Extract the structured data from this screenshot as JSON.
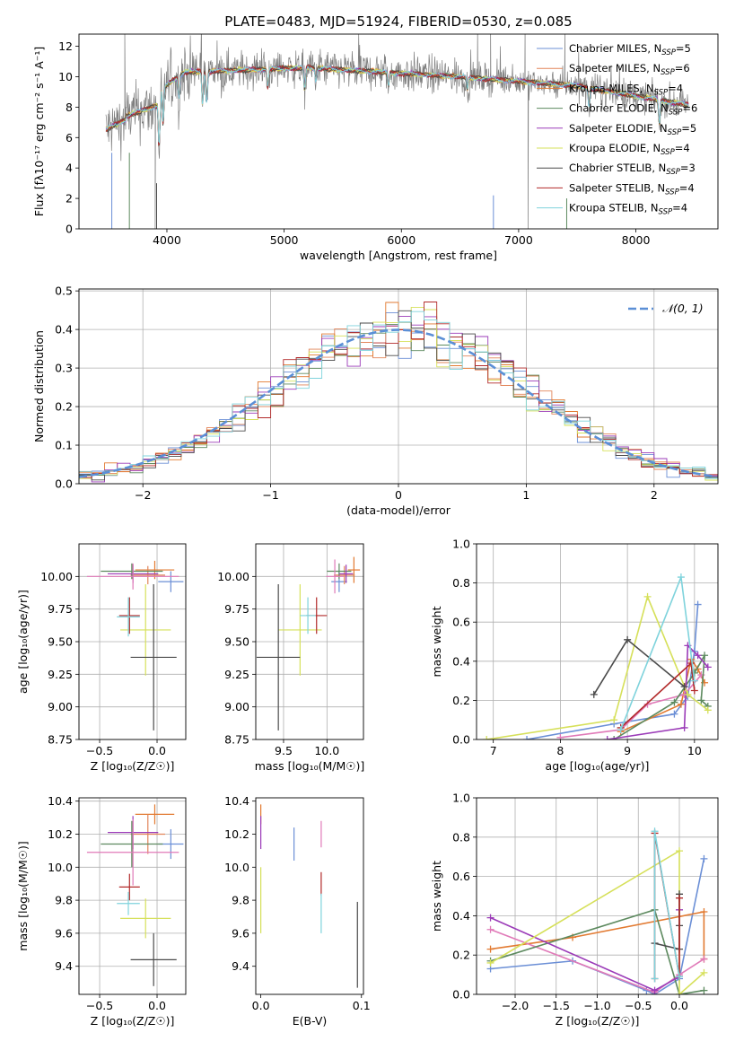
{
  "figure": {
    "title": "PLATE=0483, MJD=51924, FIBERID=0530, z=0.085"
  },
  "chart_data": [
    {
      "id": "spectrum",
      "type": "line",
      "xlabel": "wavelength [Angstrom, rest frame]",
      "ylabel": "Flux [f$_{\\lambda}$10$^{-17}$ erg cm$^{-2}$ s$^{-1}$ A$^{-1}$]",
      "ylabel_text": "Flux [fλ10⁻¹⁷ erg cm⁻² s⁻¹ A⁻¹]",
      "xlim": [
        3250,
        8700
      ],
      "ylim": [
        0,
        12.8
      ],
      "xticks": [
        4000,
        5000,
        6000,
        7000,
        8000
      ],
      "yticks": [
        0,
        2,
        4,
        6,
        8,
        10,
        12
      ],
      "grid": false,
      "legend_position": "top-right",
      "data_color": "#7f7f7f",
      "series": [
        {
          "name": "Chabrier MILES, N$_{SSP}$=5",
          "label": "Chabrier MILES, N",
          "sub": "SSP",
          "suffix": "=5",
          "color": "#6b8fd6"
        },
        {
          "name": "Salpeter MILES, N$_{SSP}$=6",
          "label": "Salpeter MILES, N",
          "sub": "SSP",
          "suffix": "=6",
          "color": "#e2855a"
        },
        {
          "name": "Kroupa MILES, N$_{SSP}$=4",
          "label": "Kroupa MILES, N",
          "sub": "SSP",
          "suffix": "=4",
          "color": "#e27a31"
        },
        {
          "name": "Chabrier ELODIE, N$_{SSP}$=6",
          "label": "Chabrier ELODIE, N",
          "sub": "SSP",
          "suffix": "=6",
          "color": "#5d8a5f"
        },
        {
          "name": "Salpeter ELODIE, N$_{SSP}$=5",
          "label": "Salpeter ELODIE, N",
          "sub": "SSP",
          "suffix": "=5",
          "color": "#9b3bb8"
        },
        {
          "name": "Kroupa ELODIE, N$_{SSP}$=4",
          "label": "Kroupa ELODIE, N",
          "sub": "SSP",
          "suffix": "=4",
          "color": "#d6e05a"
        },
        {
          "name": "Chabrier STELIB, N$_{SSP}$=3",
          "label": "Chabrier STELIB, N",
          "sub": "SSP",
          "suffix": "=3",
          "color": "#4a4a4a"
        },
        {
          "name": "Salpeter STELIB, N$_{SSP}$=4",
          "label": "Salpeter STELIB, N",
          "sub": "SSP",
          "suffix": "=4",
          "color": "#b22a2a"
        },
        {
          "name": "Kroupa STELIB, N$_{SSP}$=4",
          "label": "Kroupa STELIB, N",
          "sub": "SSP",
          "suffix": "=4",
          "color": "#7fd3dc"
        }
      ]
    },
    {
      "id": "residuals",
      "type": "histogram",
      "xlabel": "(data-model)/error",
      "ylabel": "Normed distribution",
      "xlim": [
        -2.5,
        2.5
      ],
      "ylim": [
        0,
        0.505
      ],
      "xticks": [
        -2,
        -1,
        0,
        1,
        2
      ],
      "yticks": [
        0.0,
        0.1,
        0.2,
        0.3,
        0.4,
        0.5
      ],
      "grid": true,
      "legend_position": "top-right",
      "reference_curve": {
        "name": "$\\mathcal{N}(0,1)$",
        "label": "𝒩(0, 1)",
        "mean": 0,
        "sigma": 1,
        "color": "#5b8fd6"
      },
      "bin_width": 0.1
    },
    {
      "id": "age-vs-Z",
      "type": "errorbar",
      "xlabel": "Z [log$_{10}$(Z/Z$_\\odot$)]",
      "xlabel_text": "Z [log₁₀(Z/Z☉)]",
      "ylabel": "age  [log$_{10}$(age/yr)]",
      "ylabel_text": "age  [log₁₀(age/yr)]",
      "xlim": [
        -0.68,
        0.25
      ],
      "ylim": [
        8.75,
        10.25
      ],
      "xticks": [
        -0.5,
        0.0
      ],
      "yticks": [
        8.75,
        9.0,
        9.25,
        9.5,
        9.75,
        10.0
      ],
      "grid": true,
      "points": [
        {
          "x": 0.12,
          "y": 9.96,
          "xerr": 0.11,
          "yerr": 0.08,
          "color": "#6b8fd6"
        },
        {
          "x": -0.02,
          "y": 10.05,
          "xerr": 0.17,
          "yerr": 0.07,
          "color": "#e27a31"
        },
        {
          "x": -0.08,
          "y": 10.01,
          "xerr": 0.15,
          "yerr": 0.07,
          "color": "#e2855a"
        },
        {
          "x": -0.22,
          "y": 10.04,
          "xerr": 0.27,
          "yerr": 0.06,
          "color": "#5d8a5f"
        },
        {
          "x": -0.21,
          "y": 10.02,
          "xerr": 0.22,
          "yerr": 0.07,
          "color": "#9b3bb8"
        },
        {
          "x": -0.1,
          "y": 9.59,
          "xerr": 0.22,
          "yerr": 0.35,
          "color": "#d6e05a"
        },
        {
          "x": -0.03,
          "y": 9.38,
          "xerr": 0.2,
          "yerr": 0.56,
          "color": "#4a4a4a"
        },
        {
          "x": -0.24,
          "y": 9.7,
          "xerr": 0.09,
          "yerr": 0.14,
          "color": "#b22a2a"
        },
        {
          "x": -0.21,
          "y": 10.0,
          "xerr": 0.4,
          "yerr": 0.1,
          "color": "#e07ab8"
        },
        {
          "x": -0.25,
          "y": 9.69,
          "xerr": 0.1,
          "yerr": 0.15,
          "color": "#7fd3dc"
        }
      ]
    },
    {
      "id": "age-vs-mass",
      "type": "errorbar",
      "xlabel": "mass [log$_{10}$(M/M$_\\odot$)]",
      "xlabel_text": "mass [log₁₀(M/M☉)]",
      "ylabel": "",
      "xlim": [
        9.18,
        10.42
      ],
      "ylim": [
        8.75,
        10.25
      ],
      "xticks": [
        9.5,
        10.0
      ],
      "yticks": [
        8.75,
        9.0,
        9.25,
        9.5,
        9.75,
        10.0
      ],
      "grid": true,
      "points": [
        {
          "x": 10.14,
          "y": 9.96,
          "xerr": 0.09,
          "yerr": 0.08,
          "color": "#6b8fd6"
        },
        {
          "x": 10.31,
          "y": 10.05,
          "xerr": 0.07,
          "yerr": 0.1,
          "color": "#e27a31"
        },
        {
          "x": 10.2,
          "y": 10.01,
          "xerr": 0.12,
          "yerr": 0.07,
          "color": "#e2855a"
        },
        {
          "x": 10.14,
          "y": 10.04,
          "xerr": 0.14,
          "yerr": 0.06,
          "color": "#5d8a5f"
        },
        {
          "x": 10.22,
          "y": 10.02,
          "xerr": 0.08,
          "yerr": 0.07,
          "color": "#9b3bb8"
        },
        {
          "x": 9.69,
          "y": 9.59,
          "xerr": 0.25,
          "yerr": 0.35,
          "color": "#d6e05a"
        },
        {
          "x": 9.44,
          "y": 9.38,
          "xerr": 0.25,
          "yerr": 0.56,
          "color": "#4a4a4a"
        },
        {
          "x": 9.88,
          "y": 9.7,
          "xerr": 0.12,
          "yerr": 0.14,
          "color": "#b22a2a"
        },
        {
          "x": 10.09,
          "y": 10.0,
          "xerr": 0.1,
          "yerr": 0.13,
          "color": "#e07ab8"
        },
        {
          "x": 9.78,
          "y": 9.7,
          "xerr": 0.09,
          "yerr": 0.14,
          "color": "#7fd3dc"
        }
      ]
    },
    {
      "id": "weight-vs-age",
      "type": "line",
      "xlabel": "age  [log$_{10}$(age/yr)]",
      "xlabel_text": "age  [log₁₀(age/yr)]",
      "ylabel": "mass weight",
      "xlim": [
        6.75,
        10.35
      ],
      "ylim": [
        0.0,
        1.0
      ],
      "xticks": [
        7,
        8,
        9,
        10
      ],
      "yticks": [
        0.0,
        0.2,
        0.4,
        0.6,
        0.8,
        1.0
      ],
      "grid": true,
      "marker": "+",
      "series": [
        {
          "color": "#6b8fd6",
          "x": [
            7.5,
            8.8,
            9.7,
            9.9,
            10.0,
            10.05
          ],
          "y": [
            0.0,
            0.08,
            0.13,
            0.22,
            0.45,
            0.69
          ]
        },
        {
          "color": "#e27a31",
          "x": [
            8.9,
            9.8,
            9.95,
            10.05,
            10.15
          ],
          "y": [
            0.04,
            0.18,
            0.41,
            0.36,
            0.29
          ]
        },
        {
          "color": "#e07ab8",
          "x": [
            8.0,
            8.9,
            9.3,
            9.85,
            10.1
          ],
          "y": [
            0.01,
            0.05,
            0.18,
            0.23,
            0.33
          ]
        },
        {
          "color": "#5d8a5f",
          "x": [
            8.8,
            9.7,
            10.0,
            10.15,
            10.1,
            10.2
          ],
          "y": [
            0.0,
            0.19,
            0.34,
            0.43,
            0.2,
            0.17
          ]
        },
        {
          "color": "#9b3bb8",
          "x": [
            8.7,
            9.85,
            9.9,
            10.05,
            10.2
          ],
          "y": [
            0.0,
            0.06,
            0.48,
            0.43,
            0.37
          ]
        },
        {
          "color": "#d6e05a",
          "x": [
            6.9,
            8.8,
            9.3,
            9.9,
            10.2
          ],
          "y": [
            0.0,
            0.1,
            0.73,
            0.23,
            0.15
          ]
        },
        {
          "color": "#4a4a4a",
          "x": [
            8.5,
            9.0,
            9.85
          ],
          "y": [
            0.23,
            0.51,
            0.27
          ]
        },
        {
          "color": "#b22a2a",
          "x": [
            8.9,
            9.95,
            10.0
          ],
          "y": [
            0.06,
            0.39,
            0.25
          ]
        },
        {
          "color": "#7fd3dc",
          "x": [
            8.9,
            9.8,
            10.0
          ],
          "y": [
            0.05,
            0.83,
            0.3
          ]
        }
      ]
    },
    {
      "id": "mass-vs-Z",
      "type": "errorbar",
      "xlabel": "Z [log$_{10}$(Z/Z$_\\odot$)]",
      "xlabel_text": "Z [log₁₀(Z/Z☉)]",
      "ylabel": "mass [log$_{10}$(M/M$_\\odot$)]",
      "ylabel_text": "mass [log₁₀(M/M☉)]",
      "xlim": [
        -0.68,
        0.25
      ],
      "ylim": [
        9.23,
        10.42
      ],
      "xticks": [
        -0.5,
        0.0
      ],
      "yticks": [
        9.4,
        9.6,
        9.8,
        10.0,
        10.2,
        10.4
      ],
      "grid": true,
      "points": [
        {
          "x": 0.12,
          "y": 10.14,
          "xerr": 0.11,
          "yerr": 0.09,
          "color": "#6b8fd6"
        },
        {
          "x": -0.02,
          "y": 10.32,
          "xerr": 0.17,
          "yerr": 0.06,
          "color": "#e27a31"
        },
        {
          "x": -0.08,
          "y": 10.2,
          "xerr": 0.15,
          "yerr": 0.12,
          "color": "#e2855a"
        },
        {
          "x": -0.22,
          "y": 10.14,
          "xerr": 0.27,
          "yerr": 0.14,
          "color": "#5d8a5f"
        },
        {
          "x": -0.21,
          "y": 10.21,
          "xerr": 0.22,
          "yerr": 0.1,
          "color": "#9b3bb8"
        },
        {
          "x": -0.1,
          "y": 9.69,
          "xerr": 0.22,
          "yerr": 0.12,
          "color": "#d6e05a"
        },
        {
          "x": -0.03,
          "y": 9.44,
          "xerr": 0.2,
          "yerr": 0.16,
          "color": "#4a4a4a"
        },
        {
          "x": -0.24,
          "y": 9.88,
          "xerr": 0.09,
          "yerr": 0.08,
          "color": "#b22a2a"
        },
        {
          "x": -0.21,
          "y": 10.09,
          "xerr": 0.4,
          "yerr": 0.2,
          "color": "#e07ab8"
        },
        {
          "x": -0.25,
          "y": 9.78,
          "xerr": 0.1,
          "yerr": 0.07,
          "color": "#7fd3dc"
        }
      ]
    },
    {
      "id": "mass-vs-EBV",
      "type": "errorbar",
      "xlabel": "E(B-V)",
      "ylabel": "",
      "xlim": [
        -0.005,
        0.102
      ],
      "ylim": [
        9.23,
        10.42
      ],
      "xticks": [
        0.0,
        0.1
      ],
      "yticks": [
        9.4,
        9.6,
        9.8,
        10.0,
        10.2,
        10.4
      ],
      "grid": false,
      "points": [
        {
          "x": 0.033,
          "y": 10.14,
          "xerr": 0,
          "yerr": 0.1,
          "color": "#6b8fd6"
        },
        {
          "x": 0.0,
          "y": 10.32,
          "xerr": 0,
          "yerr": 0.06,
          "color": "#e27a31"
        },
        {
          "x": 0.06,
          "y": 10.2,
          "xerr": 0,
          "yerr": 0.08,
          "color": "#e07ab8"
        },
        {
          "x": 0.0,
          "y": 10.21,
          "xerr": 0,
          "yerr": 0.1,
          "color": "#9b3bb8"
        },
        {
          "x": 0.0,
          "y": 9.8,
          "xerr": 0,
          "yerr": 0.2,
          "color": "#d6e05a"
        },
        {
          "x": 0.096,
          "y": 9.53,
          "xerr": 0,
          "yerr": 0.26,
          "color": "#4a4a4a"
        },
        {
          "x": 0.06,
          "y": 9.9,
          "xerr": 0,
          "yerr": 0.07,
          "color": "#b22a2a"
        },
        {
          "x": 0.06,
          "y": 9.72,
          "xerr": 0,
          "yerr": 0.12,
          "color": "#7fd3dc"
        }
      ]
    },
    {
      "id": "weight-vs-Z",
      "type": "line",
      "xlabel": "Z [log$_{10}$(Z/Z$_\\odot$)]",
      "xlabel_text": "Z [log₁₀(Z/Z☉)]",
      "ylabel": "mass weight",
      "xlim": [
        -2.47,
        0.47
      ],
      "ylim": [
        0.0,
        1.0
      ],
      "xticks": [
        -2.0,
        -1.5,
        -1.0,
        -0.5,
        0.0
      ],
      "yticks": [
        0.0,
        0.2,
        0.4,
        0.6,
        0.8,
        1.0
      ],
      "grid": true,
      "marker": "+",
      "series": [
        {
          "color": "#6b8fd6",
          "x": [
            -2.3,
            -1.3,
            -0.4,
            -0.3,
            0.0,
            0.3
          ],
          "y": [
            0.13,
            0.17,
            0.02,
            0.0,
            0.08,
            0.69
          ]
        },
        {
          "color": "#e27a31",
          "x": [
            -2.3,
            -1.3,
            0.3,
            0.3
          ],
          "y": [
            0.23,
            0.29,
            0.42,
            0.18
          ]
        },
        {
          "color": "#e07ab8",
          "x": [
            -2.3,
            -0.3,
            0.0,
            0.3
          ],
          "y": [
            0.33,
            0.01,
            0.1,
            0.18
          ]
        },
        {
          "color": "#5d8a5f",
          "x": [
            -2.3,
            -0.3,
            0.0,
            0.3
          ],
          "y": [
            0.17,
            0.43,
            0.0,
            0.02
          ]
        },
        {
          "color": "#9b3bb8",
          "x": [
            -2.3,
            -0.3,
            0.0,
            0.0
          ],
          "y": [
            0.39,
            0.02,
            0.09,
            0.43
          ]
        },
        {
          "color": "#d6e05a",
          "x": [
            -2.3,
            0.0,
            0.0,
            0.3
          ],
          "y": [
            0.16,
            0.73,
            0.0,
            0.11
          ]
        },
        {
          "color": "#4a4a4a",
          "x": [
            -0.3,
            0.0,
            0.0,
            0.0
          ],
          "y": [
            0.26,
            0.23,
            0.35,
            0.51
          ]
        },
        {
          "color": "#b22a2a",
          "x": [
            -0.3,
            -0.3,
            0.0,
            0.0
          ],
          "y": [
            0.08,
            0.82,
            0.09,
            0.49
          ]
        },
        {
          "color": "#7fd3dc",
          "x": [
            -0.3,
            -0.3,
            0.0
          ],
          "y": [
            0.08,
            0.83,
            0.09
          ]
        }
      ]
    }
  ]
}
